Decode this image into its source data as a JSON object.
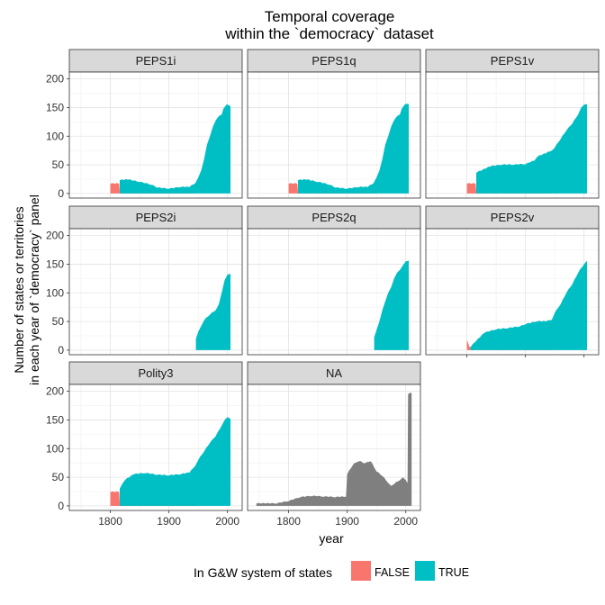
{
  "chart_data": {
    "type": "area",
    "title": [
      "Temporal coverage",
      "within the `democracy` dataset"
    ],
    "xlabel": "year",
    "ylabel": [
      "Number of states or territories",
      "in each year of `democracy` panel"
    ],
    "xlim": [
      1730,
      2025
    ],
    "ylim": [
      -8,
      212
    ],
    "x_ticks": [
      1800,
      1900,
      2000
    ],
    "y_ticks": [
      0,
      50,
      100,
      150,
      200
    ],
    "grid": true,
    "legend": {
      "title": "In G&W system of states",
      "position": "bottom",
      "entries": [
        {
          "label": "FALSE",
          "color": "#F8766D"
        },
        {
          "label": "TRUE",
          "color": "#00BFC4"
        }
      ]
    },
    "na_color": "#7F7F7F",
    "facets": [
      {
        "name": "PEPS1i",
        "series": [
          {
            "group": "FALSE",
            "points": [
              [
                1800,
                17
              ],
              [
                1815,
                17
              ],
              [
                1816,
                2
              ],
              [
                1900,
                2
              ],
              [
                1901,
                1
              ],
              [
                1945,
                1
              ],
              [
                1946,
                0
              ]
            ]
          },
          {
            "group": "TRUE",
            "points": [
              [
                1816,
                23
              ],
              [
                1830,
                24
              ],
              [
                1850,
                20
              ],
              [
                1870,
                15
              ],
              [
                1880,
                10
              ],
              [
                1900,
                8
              ],
              [
                1920,
                11
              ],
              [
                1935,
                11
              ],
              [
                1945,
                18
              ],
              [
                1950,
                28
              ],
              [
                1955,
                40
              ],
              [
                1960,
                60
              ],
              [
                1965,
                85
              ],
              [
                1970,
                100
              ],
              [
                1975,
                117
              ],
              [
                1980,
                128
              ],
              [
                1985,
                135
              ],
              [
                1990,
                138
              ],
              [
                1993,
                148
              ],
              [
                1998,
                155
              ],
              [
                2005,
                152
              ]
            ]
          }
        ]
      },
      {
        "name": "PEPS1q",
        "series": [
          {
            "group": "FALSE",
            "points": [
              [
                1800,
                17
              ],
              [
                1815,
                17
              ],
              [
                1816,
                2
              ],
              [
                1900,
                2
              ],
              [
                1901,
                1
              ],
              [
                1945,
                1
              ],
              [
                1946,
                0
              ]
            ]
          },
          {
            "group": "TRUE",
            "points": [
              [
                1816,
                23
              ],
              [
                1830,
                24
              ],
              [
                1850,
                20
              ],
              [
                1870,
                15
              ],
              [
                1880,
                10
              ],
              [
                1900,
                8
              ],
              [
                1920,
                11
              ],
              [
                1935,
                11
              ],
              [
                1945,
                18
              ],
              [
                1950,
                28
              ],
              [
                1955,
                40
              ],
              [
                1960,
                60
              ],
              [
                1965,
                85
              ],
              [
                1970,
                100
              ],
              [
                1975,
                117
              ],
              [
                1980,
                128
              ],
              [
                1985,
                135
              ],
              [
                1990,
                138
              ],
              [
                1993,
                148
              ],
              [
                1998,
                155
              ],
              [
                2005,
                156
              ]
            ]
          }
        ]
      },
      {
        "name": "PEPS1v",
        "series": [
          {
            "group": "FALSE",
            "points": [
              [
                1800,
                17
              ],
              [
                1815,
                17
              ],
              [
                1816,
                3
              ],
              [
                1900,
                3
              ],
              [
                1901,
                1
              ],
              [
                1945,
                1
              ],
              [
                1946,
                0
              ]
            ]
          },
          {
            "group": "TRUE",
            "points": [
              [
                1816,
                36
              ],
              [
                1825,
                40
              ],
              [
                1840,
                47
              ],
              [
                1860,
                50
              ],
              [
                1880,
                50
              ],
              [
                1900,
                51
              ],
              [
                1915,
                57
              ],
              [
                1920,
                64
              ],
              [
                1935,
                70
              ],
              [
                1945,
                75
              ],
              [
                1950,
                80
              ],
              [
                1960,
                95
              ],
              [
                1970,
                110
              ],
              [
                1980,
                122
              ],
              [
                1990,
                138
              ],
              [
                1995,
                150
              ],
              [
                2000,
                155
              ],
              [
                2005,
                156
              ]
            ]
          }
        ]
      },
      {
        "name": "PEPS2i",
        "series": [
          {
            "group": "TRUE",
            "points": [
              [
                1946,
                20
              ],
              [
                1950,
                32
              ],
              [
                1955,
                42
              ],
              [
                1960,
                52
              ],
              [
                1970,
                62
              ],
              [
                1980,
                70
              ],
              [
                1985,
                80
              ],
              [
                1990,
                100
              ],
              [
                1995,
                122
              ],
              [
                2000,
                132
              ],
              [
                2005,
                133
              ]
            ]
          }
        ]
      },
      {
        "name": "PEPS2q",
        "series": [
          {
            "group": "TRUE",
            "points": [
              [
                1946,
                22
              ],
              [
                1950,
                35
              ],
              [
                1955,
                50
              ],
              [
                1960,
                70
              ],
              [
                1965,
                85
              ],
              [
                1970,
                100
              ],
              [
                1975,
                110
              ],
              [
                1980,
                125
              ],
              [
                1985,
                135
              ],
              [
                1990,
                140
              ],
              [
                1995,
                148
              ],
              [
                2000,
                155
              ],
              [
                2005,
                156
              ]
            ]
          }
        ]
      },
      {
        "name": "PEPS2v",
        "series": [
          {
            "group": "FALSE",
            "points": [
              [
                1800,
                18
              ],
              [
                1805,
                5
              ],
              [
                1900,
                5
              ],
              [
                1901,
                2
              ],
              [
                1945,
                2
              ],
              [
                1946,
                0
              ]
            ]
          },
          {
            "group": "TRUE",
            "points": [
              [
                1806,
                5
              ],
              [
                1815,
                15
              ],
              [
                1830,
                30
              ],
              [
                1850,
                36
              ],
              [
                1870,
                38
              ],
              [
                1890,
                41
              ],
              [
                1900,
                45
              ],
              [
                1920,
                50
              ],
              [
                1935,
                50
              ],
              [
                1945,
                53
              ],
              [
                1950,
                65
              ],
              [
                1960,
                80
              ],
              [
                1970,
                100
              ],
              [
                1980,
                115
              ],
              [
                1990,
                135
              ],
              [
                2000,
                150
              ],
              [
                2005,
                156
              ]
            ]
          }
        ]
      },
      {
        "name": "Polity3",
        "series": [
          {
            "group": "FALSE",
            "points": [
              [
                1800,
                24
              ],
              [
                1815,
                24
              ],
              [
                1816,
                3
              ],
              [
                1850,
                5
              ],
              [
                1870,
                6
              ],
              [
                1890,
                5
              ],
              [
                1900,
                4
              ],
              [
                1901,
                2
              ],
              [
                1945,
                2
              ],
              [
                1946,
                0
              ]
            ]
          },
          {
            "group": "TRUE",
            "points": [
              [
                1816,
                30
              ],
              [
                1825,
                45
              ],
              [
                1840,
                55
              ],
              [
                1860,
                57
              ],
              [
                1880,
                54
              ],
              [
                1900,
                53
              ],
              [
                1920,
                55
              ],
              [
                1935,
                58
              ],
              [
                1945,
                70
              ],
              [
                1950,
                80
              ],
              [
                1960,
                95
              ],
              [
                1970,
                110
              ],
              [
                1980,
                122
              ],
              [
                1990,
                140
              ],
              [
                1995,
                150
              ],
              [
                2000,
                155
              ],
              [
                2005,
                152
              ]
            ]
          }
        ]
      },
      {
        "name": "NA",
        "series": [
          {
            "group": "NA",
            "points": [
              [
                1745,
                4
              ],
              [
                1780,
                4
              ],
              [
                1800,
                8
              ],
              [
                1820,
                15
              ],
              [
                1840,
                17
              ],
              [
                1860,
                16
              ],
              [
                1880,
                15
              ],
              [
                1898,
                16
              ],
              [
                1900,
                55
              ],
              [
                1910,
                72
              ],
              [
                1920,
                78
              ],
              [
                1930,
                74
              ],
              [
                1940,
                78
              ],
              [
                1950,
                60
              ],
              [
                1960,
                52
              ],
              [
                1970,
                40
              ],
              [
                1975,
                35
              ],
              [
                1980,
                38
              ],
              [
                1990,
                45
              ],
              [
                1995,
                50
              ],
              [
                2000,
                45
              ],
              [
                2003,
                40
              ],
              [
                2004,
                195
              ],
              [
                2010,
                197
              ]
            ]
          }
        ]
      }
    ]
  }
}
